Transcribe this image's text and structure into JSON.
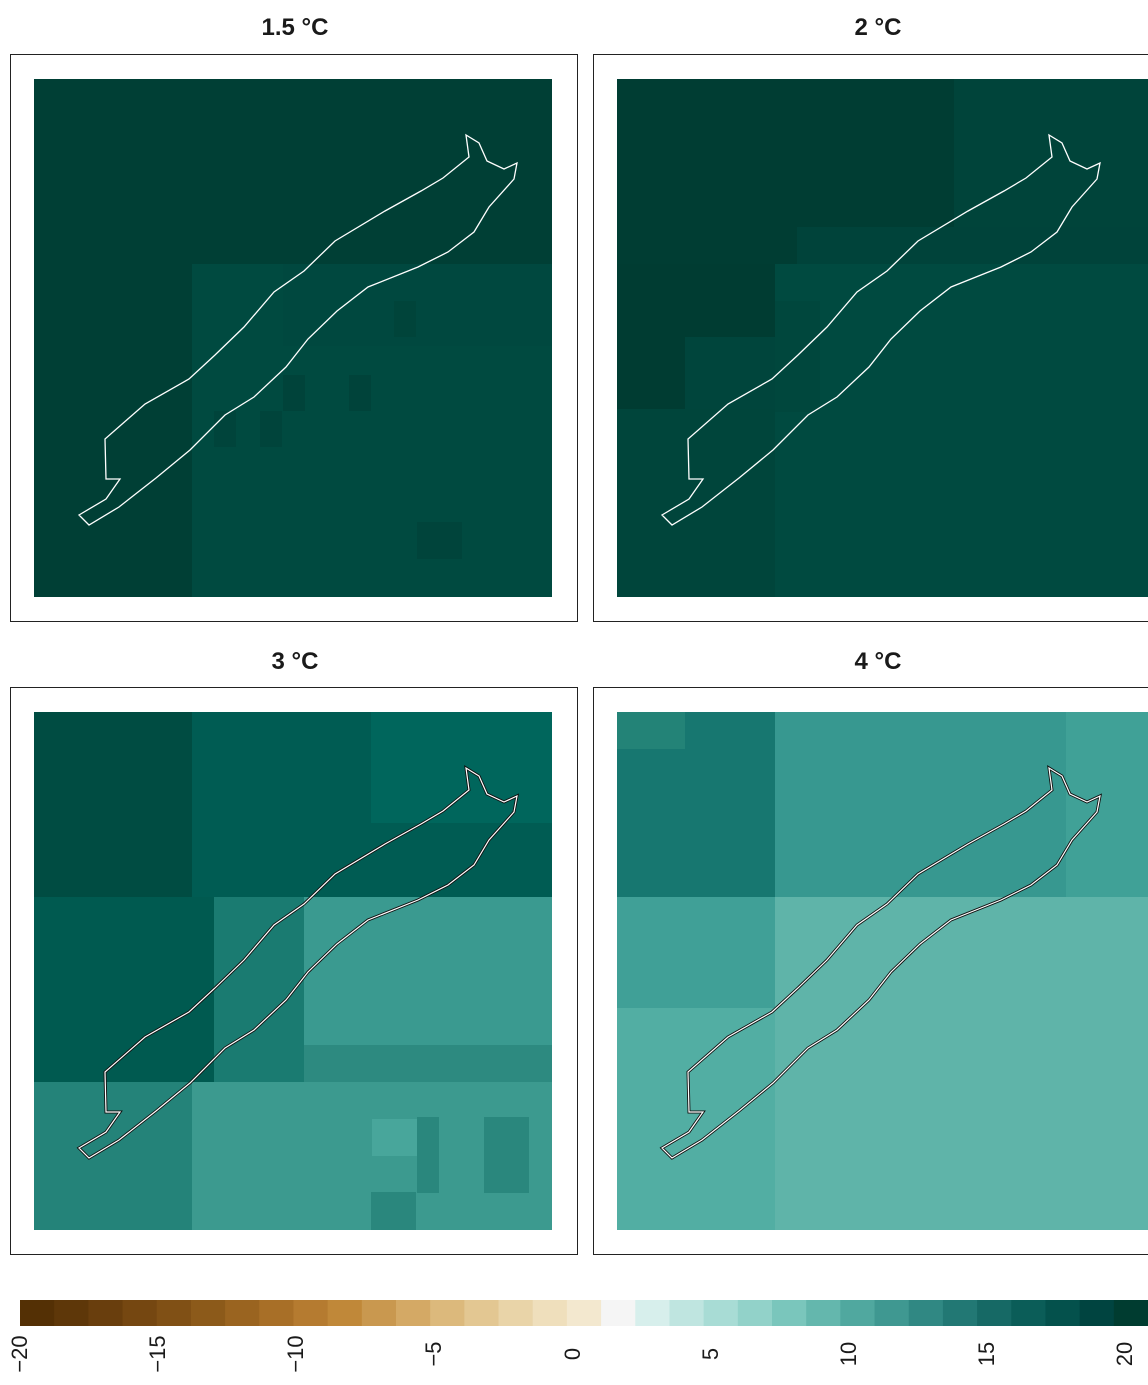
{
  "panels": [
    {
      "title": "1.5 °C"
    },
    {
      "title": "2 °C"
    },
    {
      "title": "3 °C"
    },
    {
      "title": "4 °C"
    }
  ],
  "legend": {
    "min": -20,
    "max": 20,
    "ticks": [
      "−20",
      "−15",
      "−10",
      "−5",
      "0",
      "5",
      "10",
      "15",
      "20"
    ],
    "colors": [
      "#543005",
      "#5e3709",
      "#693e0d",
      "#754711",
      "#805015",
      "#8c5a1a",
      "#9a6420",
      "#a86f27",
      "#b57b30",
      "#c08839",
      "#c9984f",
      "#d4a965",
      "#dcb97c",
      "#e3c792",
      "#e9d4a8",
      "#efdfbc",
      "#f3e8cf",
      "#f5f5f5",
      "#d7efec",
      "#bfe5e0",
      "#a8dcd5",
      "#92d2c9",
      "#7ac6bc",
      "#64b7ad",
      "#50a89f",
      "#3f9891",
      "#308883",
      "#227874",
      "#166965",
      "#0b5d58",
      "#04514c",
      "#004440",
      "#003c30"
    ]
  }
}
